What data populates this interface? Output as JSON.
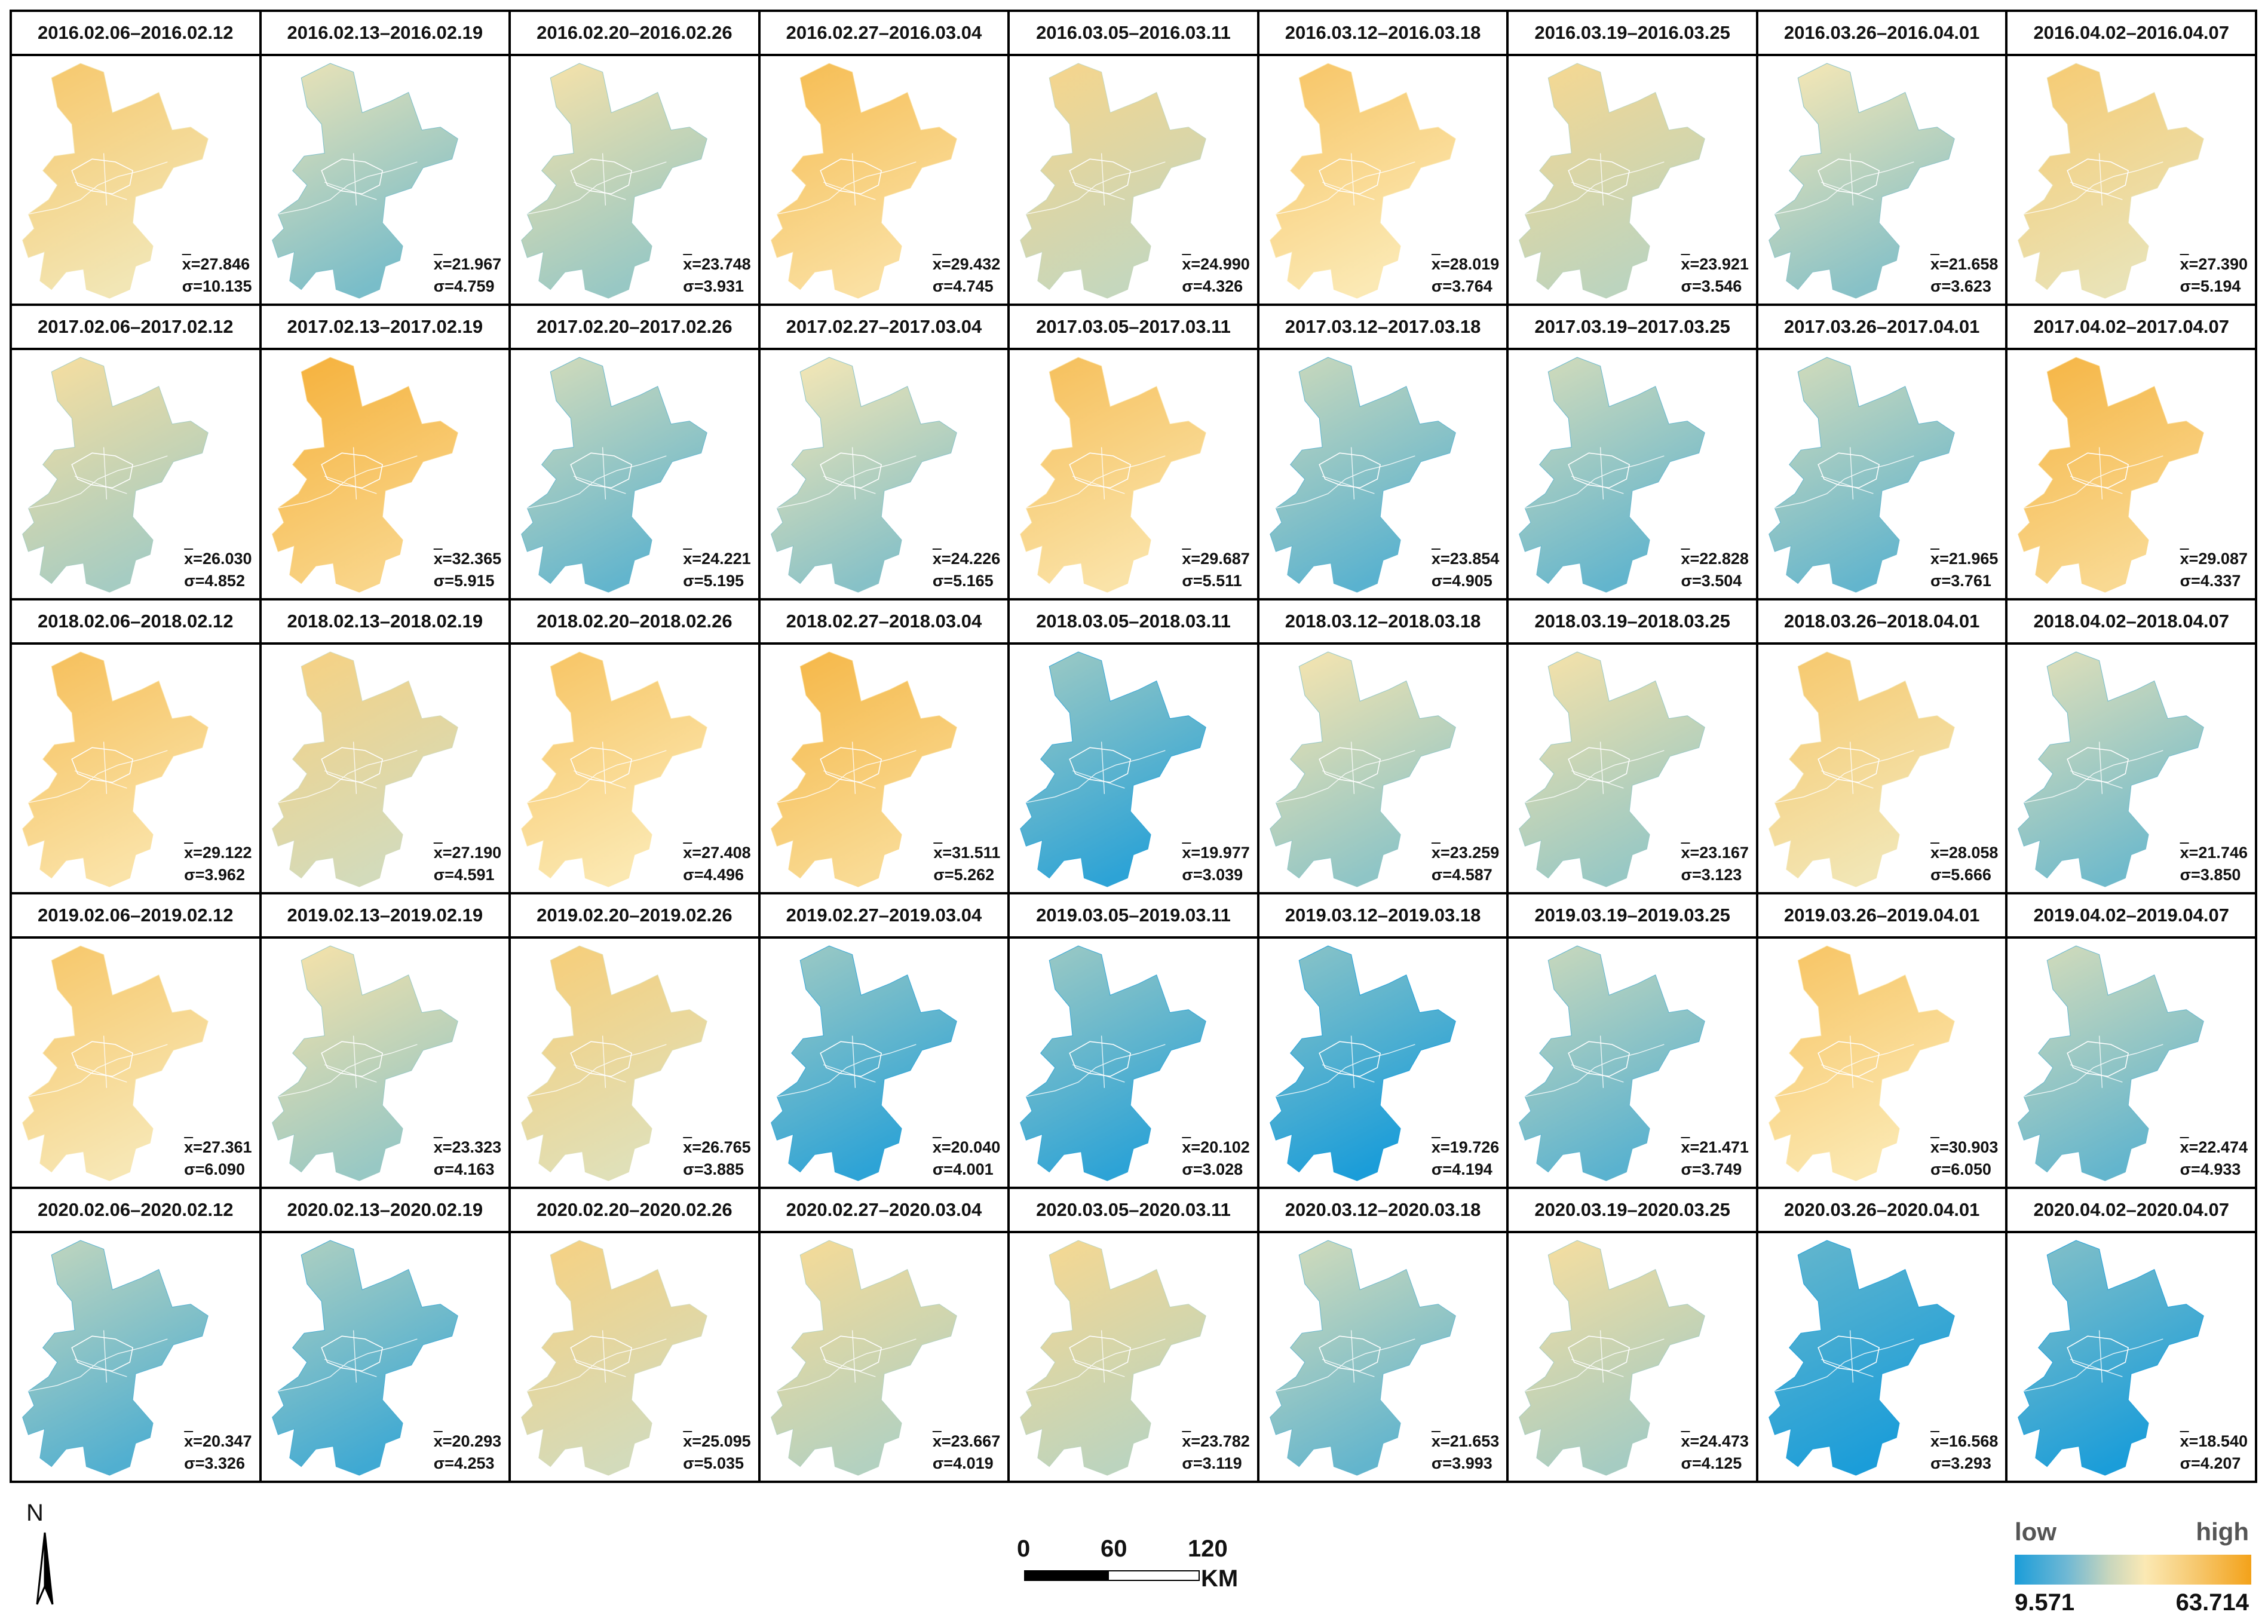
{
  "panels": [
    {
      "title": "2016.02.06–2016.02.12",
      "mean": "27.846",
      "sd": "10.135",
      "tone": 0.62
    },
    {
      "title": "2016.02.13–2016.02.19",
      "mean": "21.967",
      "sd": "4.759",
      "tone": 0.35
    },
    {
      "title": "2016.02.20–2016.02.26",
      "mean": "23.748",
      "sd": "3.931",
      "tone": 0.42
    },
    {
      "title": "2016.02.27–2016.03.04",
      "mean": "29.432",
      "sd": "4.745",
      "tone": 0.7
    },
    {
      "title": "2016.03.05–2016.03.11",
      "mean": "24.990",
      "sd": "4.326",
      "tone": 0.52
    },
    {
      "title": "2016.03.12–2016.03.18",
      "mean": "28.019",
      "sd": "3.764",
      "tone": 0.64
    },
    {
      "title": "2016.03.19–2016.03.25",
      "mean": "23.921",
      "sd": "3.546",
      "tone": 0.5
    },
    {
      "title": "2016.03.26–2016.04.01",
      "mean": "21.658",
      "sd": "3.623",
      "tone": 0.38
    },
    {
      "title": "2016.04.02–2016.04.07",
      "mean": "27.390",
      "sd": "5.194",
      "tone": 0.6
    },
    {
      "title": "2017.02.06–2017.02.12",
      "mean": "26.030",
      "sd": "4.852",
      "tone": 0.45
    },
    {
      "title": "2017.02.13–2017.02.19",
      "mean": "32.365",
      "sd": "5.915",
      "tone": 0.78
    },
    {
      "title": "2017.02.20–2017.02.26",
      "mean": "24.221",
      "sd": "5.195",
      "tone": 0.3
    },
    {
      "title": "2017.02.27–2017.03.04",
      "mean": "24.226",
      "sd": "5.165",
      "tone": 0.38
    },
    {
      "title": "2017.03.05–2017.03.11",
      "mean": "29.687",
      "sd": "5.511",
      "tone": 0.68
    },
    {
      "title": "2017.03.12–2017.03.18",
      "mean": "23.854",
      "sd": "4.905",
      "tone": 0.28
    },
    {
      "title": "2017.03.19–2017.03.25",
      "mean": "22.828",
      "sd": "3.504",
      "tone": 0.3
    },
    {
      "title": "2017.03.26–2017.04.01",
      "mean": "21.965",
      "sd": "3.761",
      "tone": 0.3
    },
    {
      "title": "2017.04.02–2017.04.07",
      "mean": "29.087",
      "sd": "4.337",
      "tone": 0.75
    },
    {
      "title": "2018.02.06–2018.02.12",
      "mean": "29.122",
      "sd": "3.962",
      "tone": 0.68
    },
    {
      "title": "2018.02.13–2018.02.19",
      "mean": "27.190",
      "sd": "4.591",
      "tone": 0.55
    },
    {
      "title": "2018.02.20–2018.02.26",
      "mean": "27.408",
      "sd": "4.496",
      "tone": 0.65
    },
    {
      "title": "2018.02.27–2018.03.04",
      "mean": "31.511",
      "sd": "5.262",
      "tone": 0.74
    },
    {
      "title": "2018.03.05–2018.03.11",
      "mean": "19.977",
      "sd": "3.039",
      "tone": 0.18
    },
    {
      "title": "2018.03.12–2018.03.18",
      "mean": "23.259",
      "sd": "4.587",
      "tone": 0.4
    },
    {
      "title": "2018.03.19–2018.03.25",
      "mean": "23.167",
      "sd": "3.123",
      "tone": 0.42
    },
    {
      "title": "2018.03.26–2018.04.01",
      "mean": "28.058",
      "sd": "5.666",
      "tone": 0.62
    },
    {
      "title": "2018.04.02–2018.04.07",
      "mean": "21.746",
      "sd": "3.850",
      "tone": 0.33
    },
    {
      "title": "2019.02.06–2019.02.12",
      "mean": "27.361",
      "sd": "6.090",
      "tone": 0.63
    },
    {
      "title": "2019.02.13–2019.02.19",
      "mean": "23.323",
      "sd": "4.163",
      "tone": 0.42
    },
    {
      "title": "2019.02.20–2019.02.26",
      "mean": "26.765",
      "sd": "3.885",
      "tone": 0.58
    },
    {
      "title": "2019.02.27–2019.03.04",
      "mean": "20.040",
      "sd": "4.001",
      "tone": 0.18
    },
    {
      "title": "2019.03.05–2019.03.11",
      "mean": "20.102",
      "sd": "3.028",
      "tone": 0.18
    },
    {
      "title": "2019.03.12–2019.03.18",
      "mean": "19.726",
      "sd": "4.194",
      "tone": 0.14
    },
    {
      "title": "2019.03.19–2019.03.25",
      "mean": "21.471",
      "sd": "3.749",
      "tone": 0.28
    },
    {
      "title": "2019.03.26–2019.04.01",
      "mean": "30.903",
      "sd": "6.050",
      "tone": 0.65
    },
    {
      "title": "2019.04.02–2019.04.07",
      "mean": "22.474",
      "sd": "4.933",
      "tone": 0.3
    },
    {
      "title": "2020.02.06–2020.02.12",
      "mean": "20.347",
      "sd": "3.326",
      "tone": 0.26
    },
    {
      "title": "2020.02.13–2020.02.19",
      "mean": "20.293",
      "sd": "4.253",
      "tone": 0.22
    },
    {
      "title": "2020.02.20–2020.02.26",
      "mean": "25.095",
      "sd": "5.035",
      "tone": 0.55
    },
    {
      "title": "2020.02.27–2020.03.04",
      "mean": "23.667",
      "sd": "4.019",
      "tone": 0.48
    },
    {
      "title": "2020.03.05–2020.03.11",
      "mean": "23.782",
      "sd": "3.119",
      "tone": 0.5
    },
    {
      "title": "2020.03.12–2020.03.18",
      "mean": "21.653",
      "sd": "3.993",
      "tone": 0.3
    },
    {
      "title": "2020.03.19–2020.03.25",
      "mean": "24.473",
      "sd": "4.125",
      "tone": 0.45
    },
    {
      "title": "2020.03.26–2020.04.01",
      "mean": "16.568",
      "sd": "3.293",
      "tone": 0.05
    },
    {
      "title": "2020.04.02–2020.04.07",
      "mean": "18.540",
      "sd": "4.207",
      "tone": 0.12
    }
  ],
  "stat_symbols": {
    "mean": "x",
    "sd": "σ="
  },
  "north": {
    "label": "N"
  },
  "scalebar": {
    "ticks": [
      "0",
      "60",
      "120"
    ],
    "unit": "KM"
  },
  "legend": {
    "low_label": "low",
    "high_label": "high",
    "min_value": "9.571",
    "max_value": "63.714",
    "low_color": "#1b9dd9",
    "mid_color": "#fbe9b4",
    "high_color": "#f3a21a"
  }
}
